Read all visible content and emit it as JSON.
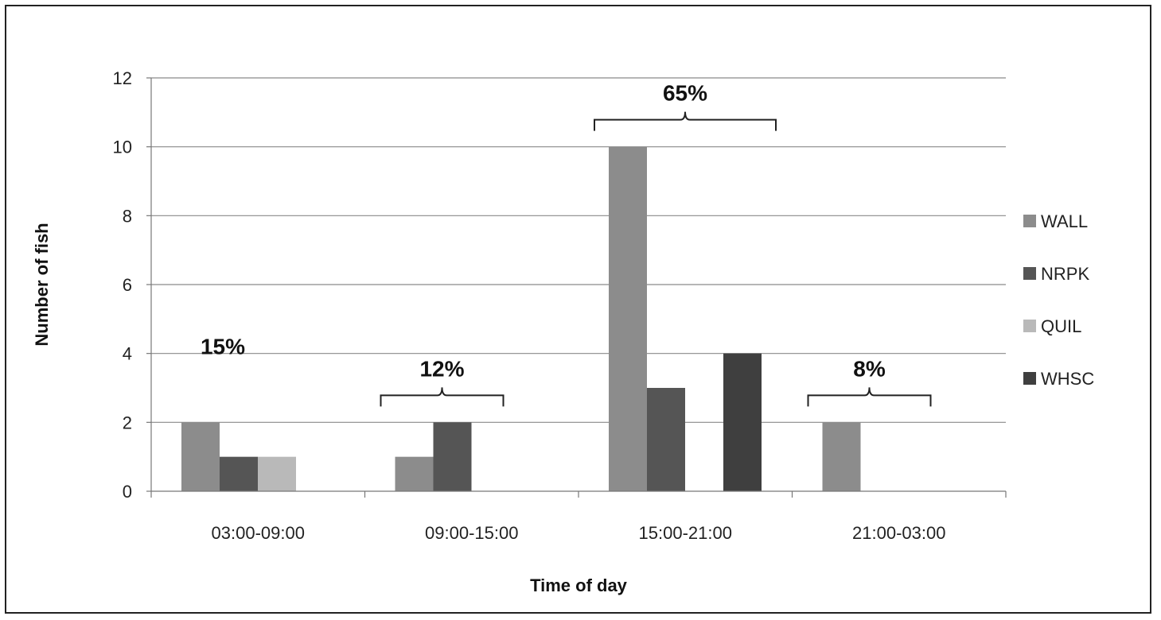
{
  "chart_data": {
    "type": "bar",
    "categories": [
      "03:00-09:00",
      "09:00-15:00",
      "15:00-21:00",
      "21:00-03:00"
    ],
    "series": [
      {
        "name": "WALL",
        "values": [
          2,
          1,
          10,
          2
        ],
        "color": "#8c8c8c"
      },
      {
        "name": "NRPK",
        "values": [
          1,
          2,
          3,
          0
        ],
        "color": "#555555"
      },
      {
        "name": "QUIL",
        "values": [
          1,
          0,
          0,
          0
        ],
        "color": "#b9b9b9"
      },
      {
        "name": "WHSC",
        "values": [
          0,
          0,
          4,
          0
        ],
        "color": "#3f3f3f"
      }
    ],
    "xlabel": "Time of day",
    "ylabel": "Number of fish",
    "ylim": [
      0,
      12
    ],
    "yticks": [
      0,
      2,
      4,
      6,
      8,
      10,
      12
    ],
    "grid": true,
    "legend_position": "right",
    "annotations": [
      {
        "category": "03:00-09:00",
        "text": "15%",
        "bracket": false
      },
      {
        "category": "09:00-15:00",
        "text": "12%",
        "bracket": true
      },
      {
        "category": "15:00-21:00",
        "text": "65%",
        "bracket": true
      },
      {
        "category": "21:00-03:00",
        "text": "8%",
        "bracket": true
      }
    ]
  }
}
